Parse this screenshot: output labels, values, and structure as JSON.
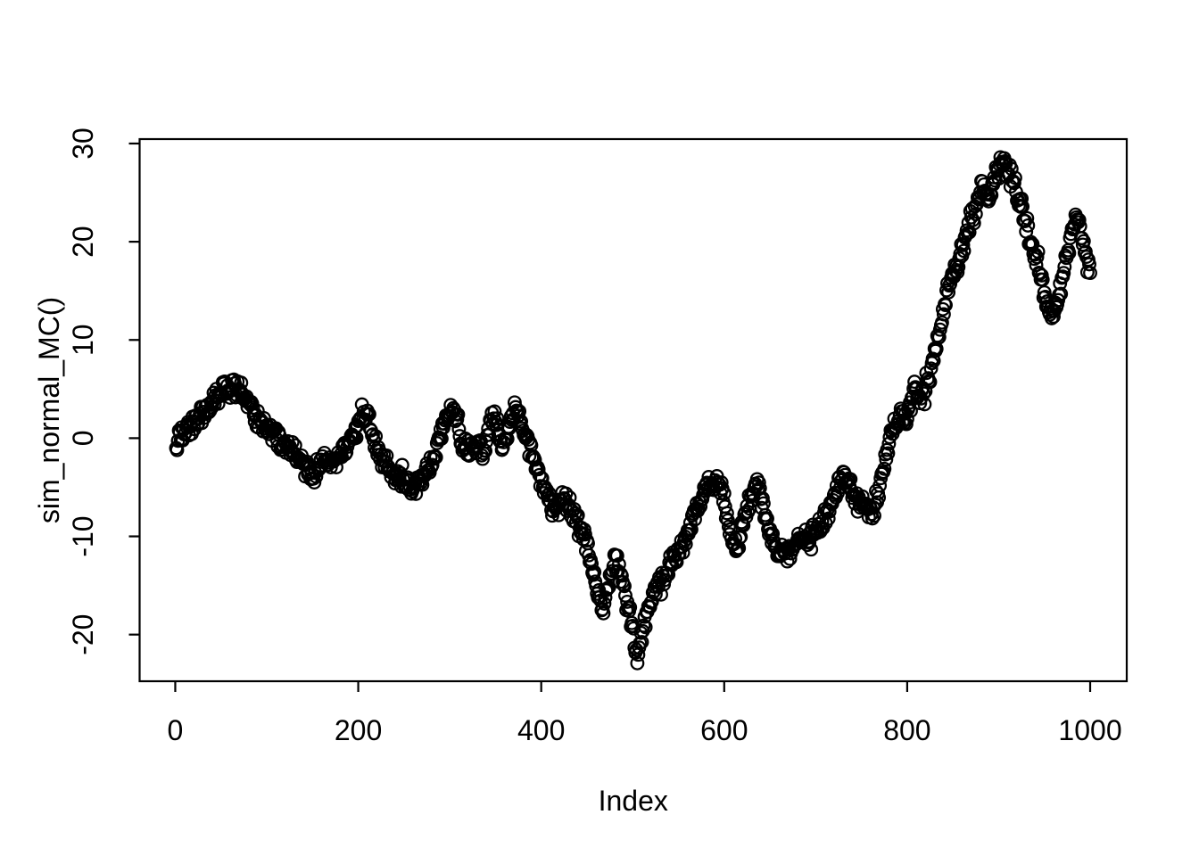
{
  "figure": {
    "background": "#ffffff",
    "foreground": "#000000"
  },
  "chart_data": {
    "type": "scatter",
    "title": "",
    "xlabel": "Index",
    "ylabel": "sim_normal_MC()",
    "legend": "none",
    "grid": false,
    "marker": "open-circle",
    "marker_color": "#000000",
    "marker_radius_px": 6.8,
    "marker_stroke_px": 2.3,
    "n_points": 1000,
    "x_ticks": [
      0,
      200,
      400,
      600,
      800,
      1000
    ],
    "y_ticks": [
      -20,
      -10,
      0,
      10,
      20,
      30
    ],
    "xlim": [
      -38.96,
      1039.96
    ],
    "ylim": [
      -24.75,
      30.45
    ],
    "noise_sd": 0.52,
    "seed": 42,
    "series_keypoints": [
      [
        0,
        -0.5
      ],
      [
        8,
        0.3
      ],
      [
        18,
        1.4
      ],
      [
        28,
        2.3
      ],
      [
        38,
        3.2
      ],
      [
        48,
        4.3
      ],
      [
        58,
        5.2
      ],
      [
        68,
        5.0
      ],
      [
        75,
        4.2
      ],
      [
        85,
        2.6
      ],
      [
        95,
        1.5
      ],
      [
        105,
        0.6
      ],
      [
        115,
        -0.3
      ],
      [
        125,
        -1.2
      ],
      [
        135,
        -2.0
      ],
      [
        145,
        -3.2
      ],
      [
        150,
        -3.9
      ],
      [
        157,
        -3.0
      ],
      [
        165,
        -2.2
      ],
      [
        172,
        -2.6
      ],
      [
        180,
        -1.8
      ],
      [
        188,
        -1.0
      ],
      [
        195,
        0.2
      ],
      [
        202,
        2.0
      ],
      [
        206,
        2.9
      ],
      [
        212,
        1.6
      ],
      [
        220,
        -1.3
      ],
      [
        230,
        -2.6
      ],
      [
        240,
        -3.9
      ],
      [
        250,
        -4.3
      ],
      [
        258,
        -5.0
      ],
      [
        266,
        -4.4
      ],
      [
        274,
        -3.6
      ],
      [
        282,
        -2.2
      ],
      [
        290,
        0.4
      ],
      [
        297,
        2.2
      ],
      [
        303,
        3.1
      ],
      [
        307,
        2.6
      ],
      [
        312,
        -0.2
      ],
      [
        318,
        -1.1
      ],
      [
        325,
        -1.4
      ],
      [
        331,
        -0.6
      ],
      [
        337,
        -1.5
      ],
      [
        343,
        1.0
      ],
      [
        348,
        2.4
      ],
      [
        353,
        0.6
      ],
      [
        358,
        -1.2
      ],
      [
        364,
        0.8
      ],
      [
        371,
        2.8
      ],
      [
        377,
        1.8
      ],
      [
        383,
        0.4
      ],
      [
        389,
        -1.2
      ],
      [
        395,
        -2.8
      ],
      [
        401,
        -4.5
      ],
      [
        407,
        -6.0
      ],
      [
        413,
        -7.1
      ],
      [
        419,
        -6.7
      ],
      [
        425,
        -6.3
      ],
      [
        431,
        -7.0
      ],
      [
        437,
        -8.2
      ],
      [
        443,
        -9.4
      ],
      [
        449,
        -10.8
      ],
      [
        455,
        -12.6
      ],
      [
        461,
        -15.5
      ],
      [
        468,
        -17.4
      ],
      [
        475,
        -14.2
      ],
      [
        482,
        -12.6
      ],
      [
        489,
        -14.6
      ],
      [
        496,
        -17.8
      ],
      [
        501,
        -20.0
      ],
      [
        505,
        -22.3
      ],
      [
        509,
        -20.0
      ],
      [
        513,
        -18.3
      ],
      [
        520,
        -16.6
      ],
      [
        528,
        -14.6
      ],
      [
        535,
        -14.9
      ],
      [
        542,
        -12.6
      ],
      [
        549,
        -12.0
      ],
      [
        556,
        -10.9
      ],
      [
        563,
        -8.6
      ],
      [
        570,
        -7.1
      ],
      [
        578,
        -5.6
      ],
      [
        585,
        -4.4
      ],
      [
        591,
        -3.9
      ],
      [
        597,
        -5.4
      ],
      [
        603,
        -7.9
      ],
      [
        609,
        -10.4
      ],
      [
        614,
        -11.9
      ],
      [
        620,
        -8.9
      ],
      [
        626,
        -6.7
      ],
      [
        632,
        -5.5
      ],
      [
        637,
        -4.9
      ],
      [
        643,
        -6.9
      ],
      [
        650,
        -9.6
      ],
      [
        657,
        -11.6
      ],
      [
        665,
        -12.0
      ],
      [
        673,
        -11.4
      ],
      [
        681,
        -10.7
      ],
      [
        689,
        -10.2
      ],
      [
        697,
        -9.9
      ],
      [
        705,
        -8.9
      ],
      [
        712,
        -7.4
      ],
      [
        719,
        -5.9
      ],
      [
        726,
        -4.6
      ],
      [
        731,
        -4.1
      ],
      [
        738,
        -5.2
      ],
      [
        745,
        -6.3
      ],
      [
        752,
        -6.9
      ],
      [
        759,
        -7.7
      ],
      [
        764,
        -7.2
      ],
      [
        769,
        -5.4
      ],
      [
        774,
        -3.2
      ],
      [
        779,
        -1.0
      ],
      [
        784,
        0.8
      ],
      [
        789,
        1.9
      ],
      [
        794,
        2.6
      ],
      [
        799,
        1.8
      ],
      [
        804,
        3.4
      ],
      [
        809,
        5.3
      ],
      [
        814,
        3.8
      ],
      [
        819,
        4.6
      ],
      [
        824,
        6.4
      ],
      [
        829,
        8.3
      ],
      [
        834,
        10.4
      ],
      [
        838,
        12.1
      ],
      [
        842,
        13.9
      ],
      [
        846,
        15.4
      ],
      [
        850,
        16.4
      ],
      [
        854,
        17.3
      ],
      [
        858,
        18.6
      ],
      [
        862,
        20.4
      ],
      [
        866,
        21.4
      ],
      [
        870,
        22.4
      ],
      [
        874,
        23.3
      ],
      [
        878,
        24.6
      ],
      [
        882,
        25.8
      ],
      [
        886,
        24.8
      ],
      [
        890,
        24.2
      ],
      [
        894,
        26.0
      ],
      [
        898,
        27.2
      ],
      [
        902,
        28.2
      ],
      [
        906,
        28.5
      ],
      [
        910,
        27.3
      ],
      [
        914,
        26.3
      ],
      [
        918,
        25.4
      ],
      [
        922,
        24.4
      ],
      [
        926,
        23.4
      ],
      [
        930,
        22.1
      ],
      [
        934,
        20.3
      ],
      [
        938,
        18.9
      ],
      [
        942,
        18.1
      ],
      [
        946,
        16.6
      ],
      [
        950,
        14.8
      ],
      [
        955,
        13.2
      ],
      [
        960,
        12.6
      ],
      [
        964,
        14.0
      ],
      [
        968,
        15.8
      ],
      [
        972,
        17.4
      ],
      [
        976,
        19.2
      ],
      [
        980,
        21.0
      ],
      [
        984,
        22.6
      ],
      [
        988,
        22.0
      ],
      [
        992,
        20.2
      ],
      [
        996,
        18.4
      ],
      [
        1000,
        17.2
      ]
    ]
  }
}
